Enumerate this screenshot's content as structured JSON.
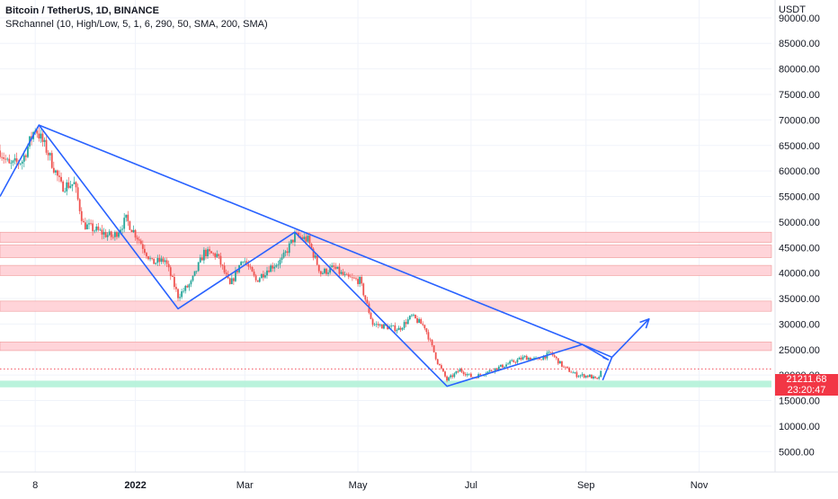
{
  "header": {
    "title": "Bitcoin / TetherUS, 1D, BINANCE",
    "indicator": "SRchannel (10, High/Low, 5, 1, 6, 290, 50, SMA, 200, SMA)"
  },
  "axis": {
    "unit_label": "USDT",
    "y_ticks": [
      "90000.00",
      "85000.00",
      "80000.00",
      "75000.00",
      "70000.00",
      "65000.00",
      "60000.00",
      "55000.00",
      "50000.00",
      "45000.00",
      "40000.00",
      "35000.00",
      "30000.00",
      "25000.00",
      "20000.00",
      "15000.00",
      "10000.00",
      "5000.00"
    ],
    "x_ticks": [
      "8",
      "2022",
      "Mar",
      "May",
      "Jul",
      "Sep",
      "Nov"
    ]
  },
  "current_price": {
    "value": "21211.68",
    "countdown": "23:20:47",
    "color": "#f23645"
  },
  "colors": {
    "up": "#26a69a",
    "down": "#ef5350",
    "trend_line": "#2962ff",
    "resistance_zone": "#ffcdd2",
    "support_zone": "#b2f2d8"
  },
  "chart_data": {
    "type": "candlestick",
    "x_axis": "date",
    "y_unit": "USDT",
    "ylim": [
      1000,
      93500
    ],
    "xlim": [
      "2021-10-20",
      "2022-12-10"
    ],
    "resistance_zones": [
      [
        46000,
        48000
      ],
      [
        43000,
        45500
      ],
      [
        39500,
        41500
      ],
      [
        32500,
        34500
      ],
      [
        24800,
        26500
      ]
    ],
    "support_zones": [
      [
        17600,
        18900
      ]
    ],
    "series": [
      {
        "kind": "candles_approx",
        "points": [
          [
            "2021-10-20",
            64000
          ],
          [
            "2021-10-25",
            61000
          ],
          [
            "2021-11-01",
            62000
          ],
          [
            "2021-11-08",
            68500
          ],
          [
            "2021-11-15",
            63500
          ],
          [
            "2021-11-22",
            57000
          ],
          [
            "2021-11-29",
            57500
          ],
          [
            "2021-12-04",
            49500
          ],
          [
            "2021-12-10",
            48500
          ],
          [
            "2021-12-20",
            47000
          ],
          [
            "2021-12-27",
            50500
          ],
          [
            "2022-01-03",
            46500
          ],
          [
            "2022-01-10",
            42000
          ],
          [
            "2022-01-17",
            42500
          ],
          [
            "2022-01-24",
            35500
          ],
          [
            "2022-01-31",
            38000
          ],
          [
            "2022-02-07",
            44000
          ],
          [
            "2022-02-14",
            43500
          ],
          [
            "2022-02-21",
            37500
          ],
          [
            "2022-02-28",
            43000
          ],
          [
            "2022-03-07",
            38500
          ],
          [
            "2022-03-14",
            41000
          ],
          [
            "2022-03-21",
            42500
          ],
          [
            "2022-03-28",
            47300
          ],
          [
            "2022-04-04",
            46500
          ],
          [
            "2022-04-11",
            40000
          ],
          [
            "2022-04-18",
            41000
          ],
          [
            "2022-04-25",
            39000
          ],
          [
            "2022-05-02",
            38500
          ],
          [
            "2022-05-09",
            30000
          ],
          [
            "2022-05-16",
            29500
          ],
          [
            "2022-05-23",
            29000
          ],
          [
            "2022-05-30",
            31500
          ],
          [
            "2022-06-06",
            29500
          ],
          [
            "2022-06-13",
            22500
          ],
          [
            "2022-06-18",
            19000
          ],
          [
            "2022-06-25",
            21000
          ],
          [
            "2022-07-02",
            19500
          ],
          [
            "2022-07-09",
            20500
          ],
          [
            "2022-07-16",
            21500
          ],
          [
            "2022-07-23",
            22500
          ],
          [
            "2022-07-30",
            23500
          ],
          [
            "2022-08-06",
            23000
          ],
          [
            "2022-08-13",
            24300
          ],
          [
            "2022-08-20",
            21500
          ],
          [
            "2022-08-27",
            20000
          ],
          [
            "2022-09-03",
            19800
          ],
          [
            "2022-09-07",
            19000
          ],
          [
            "2022-09-10",
            21211
          ]
        ]
      }
    ],
    "trend_lines": [
      [
        [
          "2021-10-20",
          55000
        ],
        [
          "2021-11-10",
          69000
        ],
        [
          "2022-01-24",
          33000
        ],
        [
          "2022-03-28",
          48000
        ],
        [
          "2022-06-18",
          17800
        ],
        [
          "2022-08-30",
          26000
        ],
        [
          "2022-09-13",
          23000
        ],
        [
          "2022-09-10",
          23500
        ]
      ],
      [
        [
          "2021-11-10",
          69000
        ],
        [
          "2022-08-30",
          26000
        ],
        [
          "2022-09-15",
          23500
        ]
      ],
      [
        [
          "2022-09-10",
          19000
        ],
        [
          "2022-09-15",
          23500
        ],
        [
          "2022-10-05",
          31000
        ]
      ]
    ]
  }
}
